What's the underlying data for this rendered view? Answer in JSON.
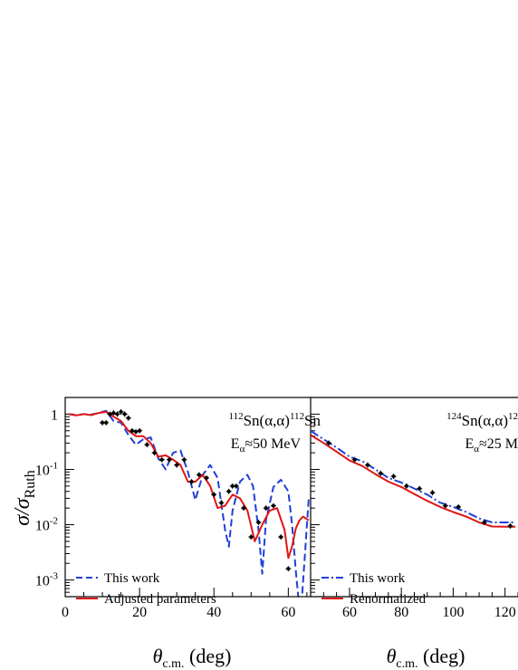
{
  "y_axis_label": {
    "symbol": "σ/σ",
    "subscript": "Ruth"
  },
  "colors": {
    "this_work": "#1f3fd8",
    "adjusted": "#e01515",
    "data": "#000000",
    "frame": "#000000"
  },
  "chart_data": [
    {
      "type": "line",
      "scale_y": "log",
      "xlim": [
        0,
        66
      ],
      "ylim": [
        0.0005,
        2
      ],
      "x_ticks": [
        0,
        20,
        40,
        60
      ],
      "x_tick_labels": [
        "0",
        "20",
        "40",
        "60"
      ],
      "y_ticks": [
        1,
        0.1,
        0.01,
        0.001
      ],
      "y_tick_labels": [
        {
          "base": "1",
          "exp": ""
        },
        {
          "base": "10",
          "exp": "-1"
        },
        {
          "base": "10",
          "exp": "-2"
        },
        {
          "base": "10",
          "exp": "-3"
        }
      ],
      "xlabel": {
        "symbol": "θ",
        "subscript": "c.m.",
        "rest": " (deg)"
      },
      "annotation": {
        "mass1": "112",
        "reaction": "Sn(α,α)",
        "mass2": "112",
        "element": "Sn",
        "energy_symbol": "E",
        "energy_sub": "α",
        "energy_value": "≈50 MeV"
      },
      "legend_position": "bottom-left",
      "series": [
        {
          "name": "This work",
          "style": "dashed",
          "color": "#1f3fd8",
          "x": [
            1,
            3,
            5,
            7,
            9,
            11,
            13,
            15,
            17,
            19,
            21,
            23,
            25,
            27,
            29,
            31,
            33,
            35,
            37,
            39,
            41,
            43,
            44,
            45,
            47,
            49,
            50.5,
            52,
            53,
            54,
            56,
            58,
            60,
            61,
            62,
            62.8,
            63.6,
            64.5,
            65.5
          ],
          "y": [
            1.0,
            0.95,
            1.0,
            0.98,
            1.05,
            1.15,
            0.75,
            0.7,
            0.42,
            0.28,
            0.35,
            0.38,
            0.16,
            0.1,
            0.2,
            0.22,
            0.09,
            0.028,
            0.08,
            0.12,
            0.07,
            0.008,
            0.004,
            0.018,
            0.06,
            0.08,
            0.05,
            0.008,
            0.0013,
            0.012,
            0.048,
            0.065,
            0.04,
            0.01,
            0.0015,
            0.0004,
            0.0004,
            0.003,
            0.03
          ]
        },
        {
          "name": "Adjusted parameters",
          "style": "solid",
          "color": "#e01515",
          "x": [
            1,
            3,
            5,
            7,
            9,
            11,
            13,
            15,
            17,
            19,
            21,
            23,
            25,
            27,
            29,
            31,
            33,
            35,
            37,
            39,
            41,
            43,
            45,
            47,
            49,
            51,
            53,
            55,
            57,
            59,
            60,
            61,
            62,
            63,
            64,
            65.5
          ],
          "y": [
            1.0,
            0.95,
            1.0,
            0.96,
            1.05,
            1.1,
            0.9,
            0.75,
            0.5,
            0.4,
            0.4,
            0.3,
            0.17,
            0.18,
            0.15,
            0.12,
            0.06,
            0.06,
            0.08,
            0.05,
            0.02,
            0.022,
            0.035,
            0.03,
            0.018,
            0.005,
            0.01,
            0.018,
            0.02,
            0.008,
            0.0025,
            0.004,
            0.0085,
            0.012,
            0.014,
            0.012
          ]
        },
        {
          "name": "",
          "style": "markers",
          "color": "#000000",
          "x": [
            10,
            11,
            12,
            13,
            14,
            15,
            16,
            17,
            18,
            19,
            20,
            22,
            24,
            26,
            28,
            30,
            32,
            34,
            36,
            38,
            40,
            42,
            44,
            45,
            46,
            48,
            50,
            52,
            54,
            56,
            58,
            60
          ],
          "y": [
            0.7,
            0.7,
            1.0,
            1.05,
            1.0,
            1.1,
            1.0,
            0.85,
            0.5,
            0.48,
            0.5,
            0.28,
            0.2,
            0.15,
            0.15,
            0.12,
            0.15,
            0.06,
            0.08,
            0.07,
            0.035,
            0.025,
            0.04,
            0.05,
            0.05,
            0.02,
            0.006,
            0.011,
            0.02,
            0.022,
            0.006,
            0.0016
          ]
        }
      ]
    },
    {
      "type": "line",
      "scale_y": "log",
      "xlim": [
        45,
        125
      ],
      "ylim": [
        0.0005,
        2
      ],
      "x_ticks": [
        60,
        80,
        100,
        120
      ],
      "x_tick_labels": [
        "60",
        "80",
        "100",
        "120"
      ],
      "xlabel": {
        "symbol": "θ",
        "subscript": "c.m.",
        "rest": " (deg)"
      },
      "annotation": {
        "mass1": "124",
        "reaction": "Sn(α,α)",
        "mass2": "12",
        "energy_symbol": "E",
        "energy_sub": "α",
        "energy_value": "≈25 M"
      },
      "legend_position": "bottom-left",
      "series": [
        {
          "name": "This work",
          "style": "dashdot",
          "color": "#1f3fd8",
          "x": [
            45,
            50,
            55,
            60,
            65,
            70,
            75,
            80,
            85,
            90,
            95,
            100,
            105,
            110,
            115,
            120,
            124
          ],
          "y": [
            0.5,
            0.35,
            0.25,
            0.17,
            0.14,
            0.1,
            0.07,
            0.058,
            0.045,
            0.035,
            0.025,
            0.021,
            0.017,
            0.013,
            0.011,
            0.011,
            0.011
          ]
        },
        {
          "name": "Renormalized",
          "style": "solid",
          "color": "#e01515",
          "x": [
            45,
            50,
            55,
            60,
            65,
            70,
            75,
            80,
            85,
            90,
            95,
            100,
            105,
            110,
            115,
            120,
            124
          ],
          "y": [
            0.42,
            0.3,
            0.21,
            0.145,
            0.115,
            0.082,
            0.06,
            0.048,
            0.036,
            0.027,
            0.021,
            0.017,
            0.014,
            0.011,
            0.0093,
            0.0092,
            0.0092
          ]
        },
        {
          "name": "",
          "style": "markers",
          "color": "#000000",
          "x": [
            52,
            62,
            67,
            72,
            77,
            82,
            87,
            92,
            97,
            102,
            112,
            122
          ],
          "y": [
            0.3,
            0.15,
            0.12,
            0.085,
            0.075,
            0.05,
            0.045,
            0.038,
            0.022,
            0.021,
            0.011,
            0.0095
          ]
        }
      ]
    }
  ]
}
